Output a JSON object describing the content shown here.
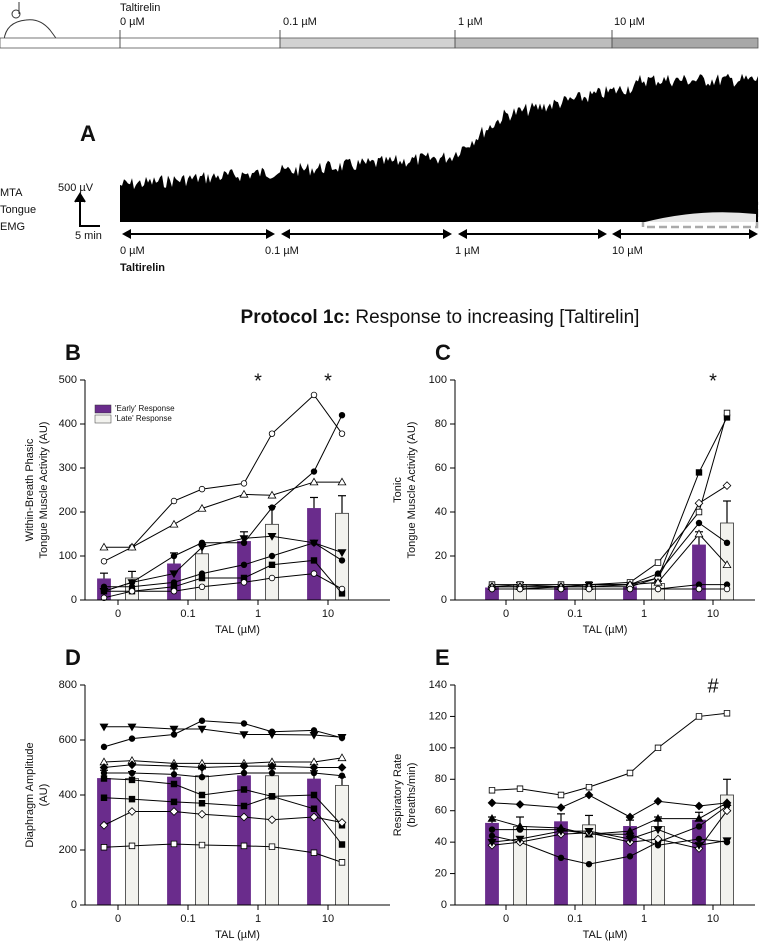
{
  "panel_a": {
    "label": "A",
    "drug": "Taltirelin",
    "top_doses": [
      "0 µM",
      "0.1 µM",
      "1 µM",
      "10 µM"
    ],
    "trace_labels": [
      "MTA",
      "Tongue",
      "EMG"
    ],
    "scale_y": "500 µV",
    "scale_x": "5 min",
    "bottom_doses": [
      "0 µM",
      "0.1 µM",
      "1 µM",
      "10 µM"
    ],
    "bottom_drug": "Taltirelin"
  },
  "title": {
    "bold": "Protocol 1c:",
    "rest": "Response to increasing [Taltirelin]"
  },
  "chart_data": [
    {
      "type": "bar",
      "panel": "B",
      "ylabel": [
        "Within-Breath Phasic",
        "Tongue Muscle Activity (AU)"
      ],
      "xlabel": "TAL (µM)",
      "categories": [
        "0",
        "0.1",
        "1",
        "10"
      ],
      "ylim": [
        0,
        500
      ],
      "yticks": [
        0,
        100,
        200,
        300,
        400,
        500
      ],
      "legend": "upper left",
      "series": [
        {
          "name": "'Early' Response",
          "color": "#6a2c8c",
          "values": [
            48,
            82,
            133,
            208
          ],
          "errors": [
            13,
            25,
            22,
            25
          ]
        },
        {
          "name": "'Late' Response",
          "color": "#f2f2ee",
          "values": [
            50,
            105,
            172,
            197
          ],
          "errors": [
            15,
            22,
            40,
            40
          ]
        }
      ],
      "annotations": [
        {
          "text": "*",
          "x": "1"
        },
        {
          "text": "*",
          "x": "10"
        }
      ],
      "individuals": [
        {
          "marker": "circle",
          "filled": false,
          "values": [
            88,
            120,
            225,
            252,
            265,
            378,
            466,
            378
          ]
        },
        {
          "marker": "triangle",
          "filled": false,
          "values": [
            120,
            120,
            172,
            208,
            240,
            238,
            268,
            268
          ]
        },
        {
          "marker": "circle",
          "filled": true,
          "values": [
            20,
            40,
            100,
            130,
            130,
            210,
            292,
            420
          ]
        },
        {
          "marker": "triangle-down",
          "filled": true,
          "values": [
            20,
            40,
            60,
            120,
            140,
            145,
            130,
            108
          ]
        },
        {
          "marker": "circle",
          "filled": true,
          "values": [
            30,
            30,
            40,
            60,
            80,
            100,
            130,
            90
          ]
        },
        {
          "marker": "square",
          "filled": true,
          "values": [
            20,
            20,
            30,
            50,
            50,
            80,
            90,
            15
          ]
        },
        {
          "marker": "circle",
          "filled": false,
          "values": [
            5,
            20,
            20,
            30,
            40,
            50,
            60,
            25
          ]
        }
      ]
    },
    {
      "type": "bar",
      "panel": "C",
      "ylabel": [
        "Tonic",
        "Tongue Muscle Activity (AU)"
      ],
      "xlabel": "TAL (µM)",
      "categories": [
        "0",
        "0.1",
        "1",
        "10"
      ],
      "ylim": [
        0,
        100
      ],
      "yticks": [
        0,
        20,
        40,
        60,
        80,
        100
      ],
      "series": [
        {
          "color": "#6a2c8c",
          "values": [
            5.5,
            5.5,
            6,
            25
          ],
          "errors": [
            0.5,
            0.5,
            0.5,
            6
          ]
        },
        {
          "color": "#f2f2ee",
          "values": [
            7,
            7,
            7.5,
            35
          ],
          "errors": [
            1,
            1,
            1,
            10
          ]
        }
      ],
      "annotations": [
        {
          "text": "*",
          "x": "10"
        }
      ],
      "individuals": [
        {
          "marker": "square",
          "filled": true,
          "values": [
            6,
            7,
            6,
            7,
            7,
            10,
            58,
            83
          ]
        },
        {
          "marker": "square",
          "filled": false,
          "values": [
            7,
            7,
            7,
            7,
            8,
            17,
            40,
            85
          ]
        },
        {
          "marker": "diamond",
          "filled": false,
          "values": [
            6,
            6,
            6,
            6,
            6,
            10,
            44,
            52
          ]
        },
        {
          "marker": "circle",
          "filled": true,
          "values": [
            5,
            5,
            6,
            7,
            7,
            12,
            35,
            26
          ]
        },
        {
          "marker": "triangle",
          "filled": false,
          "values": [
            6,
            6,
            6,
            6,
            7,
            8,
            30,
            16
          ]
        },
        {
          "marker": "circle",
          "filled": true,
          "values": [
            5,
            5,
            5,
            5,
            5,
            5,
            7,
            7
          ]
        },
        {
          "marker": "circle",
          "filled": false,
          "values": [
            5,
            5,
            5,
            5,
            5,
            5,
            5,
            5
          ]
        }
      ]
    },
    {
      "type": "bar",
      "panel": "D",
      "ylabel": [
        "Diaphragm Amplitude",
        "(AU)"
      ],
      "xlabel": "TAL (µM)",
      "categories": [
        "0",
        "0.1",
        "1",
        "10"
      ],
      "ylim": [
        0,
        800
      ],
      "yticks": [
        0,
        200,
        400,
        600,
        800
      ],
      "series": [
        {
          "color": "#6a2c8c",
          "values": [
            460,
            465,
            470,
            458
          ],
          "errors": [
            30,
            30,
            35,
            30
          ]
        },
        {
          "color": "#f2f2ee",
          "values": [
            460,
            470,
            470,
            435
          ],
          "errors": [
            25,
            25,
            25,
            30
          ]
        }
      ],
      "individuals": [
        {
          "marker": "triangle-down",
          "filled": true,
          "values": [
            648,
            648,
            640,
            640,
            620,
            620,
            618,
            610
          ]
        },
        {
          "marker": "circle",
          "filled": true,
          "values": [
            575,
            605,
            620,
            670,
            660,
            630,
            635,
            608
          ]
        },
        {
          "marker": "triangle",
          "filled": false,
          "values": [
            520,
            525,
            515,
            515,
            515,
            520,
            520,
            535
          ]
        },
        {
          "marker": "diamond",
          "filled": true,
          "values": [
            500,
            510,
            505,
            500,
            505,
            505,
            500,
            500
          ]
        },
        {
          "marker": "circle",
          "filled": true,
          "values": [
            480,
            480,
            475,
            465,
            480,
            480,
            480,
            470
          ]
        },
        {
          "marker": "square",
          "filled": true,
          "values": [
            460,
            455,
            440,
            400,
            420,
            395,
            400,
            290
          ]
        },
        {
          "marker": "square",
          "filled": true,
          "values": [
            390,
            385,
            375,
            370,
            360,
            395,
            350,
            220
          ]
        },
        {
          "marker": "diamond",
          "filled": false,
          "values": [
            290,
            340,
            340,
            330,
            320,
            310,
            320,
            300
          ]
        },
        {
          "marker": "square",
          "filled": false,
          "values": [
            210,
            215,
            222,
            218,
            215,
            212,
            190,
            155
          ]
        }
      ]
    },
    {
      "type": "bar",
      "panel": "E",
      "ylabel": [
        "Respiratory Rate",
        "(breaths/min)"
      ],
      "xlabel": "TAL (µM)",
      "categories": [
        "0",
        "0.1",
        "1",
        "10"
      ],
      "ylim": [
        0,
        140
      ],
      "yticks": [
        0,
        20,
        40,
        60,
        80,
        100,
        120,
        140
      ],
      "series": [
        {
          "color": "#6a2c8c",
          "values": [
            52,
            53,
            50,
            54
          ],
          "errors": [
            4,
            5,
            4,
            5
          ]
        },
        {
          "color": "#f2f2ee",
          "values": [
            50,
            51,
            50,
            70
          ],
          "errors": [
            6,
            6,
            6,
            10
          ]
        }
      ],
      "annotations": [
        {
          "text": "#",
          "x": "10"
        }
      ],
      "individuals": [
        {
          "marker": "square",
          "filled": false,
          "values": [
            73,
            74,
            70,
            75,
            84,
            100,
            120,
            122
          ]
        },
        {
          "marker": "diamond",
          "filled": true,
          "values": [
            65,
            64,
            62,
            70,
            56,
            66,
            63,
            65
          ]
        },
        {
          "marker": "triangle",
          "filled": true,
          "values": [
            55,
            50,
            49,
            45,
            47,
            55,
            55,
            65
          ]
        },
        {
          "marker": "circle",
          "filled": true,
          "values": [
            48,
            48,
            48,
            45,
            45,
            38,
            42,
            40
          ]
        },
        {
          "marker": "circle",
          "filled": true,
          "values": [
            44,
            40,
            30,
            26,
            31,
            40,
            50,
            63
          ]
        },
        {
          "marker": "diamond",
          "filled": false,
          "values": [
            38,
            40,
            45,
            46,
            40,
            42,
            36,
            60
          ]
        },
        {
          "marker": "triangle-down",
          "filled": true,
          "values": [
            40,
            42,
            47,
            47,
            42,
            48,
            38,
            41
          ]
        }
      ]
    }
  ]
}
